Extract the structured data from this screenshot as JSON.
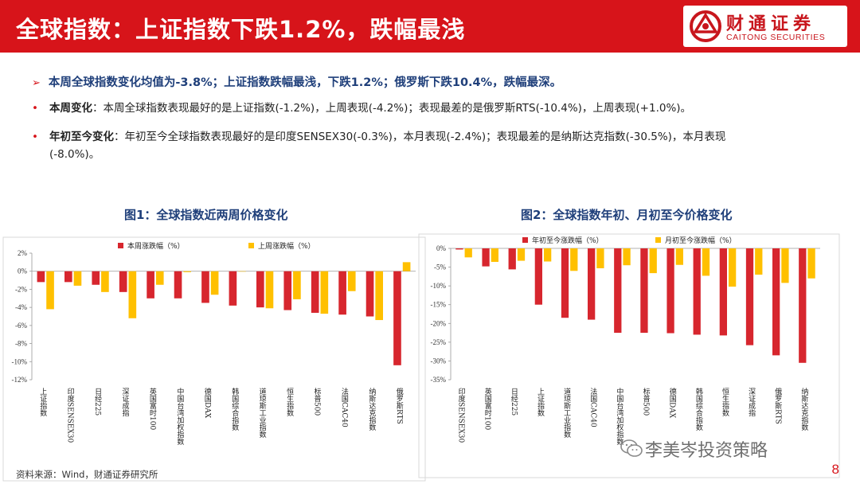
{
  "header": {
    "title": "全球指数：上证指数下跌1.2%，跌幅最浅",
    "logo_cn": "财通证券",
    "logo_en": "CAITONG SECURITIES"
  },
  "summary": "本周全球指数变化均值为-3.8%；上证指数跌幅最浅，下跌1.2%；俄罗斯下跌10.4%，跌幅最深。",
  "bullets": [
    {
      "label": "本周变化",
      "text": "：本周全球指数表现最好的是上证指数(-1.2%)，上周表现(-4.2%)；表现最差的是俄罗斯RTS(-10.4%)，上周表现(+1.0%)。"
    },
    {
      "label": "年初至今变化",
      "text": "：年初至今全球指数表现最好的是印度SENSEX30(-0.3%)，本月表现(-2.4%)；表现最差的是纳斯达克指数(-30.5%)，本月表现(-8.0%)。"
    }
  ],
  "colors": {
    "red": "#d7262e",
    "yellow": "#ffc000",
    "brand": "#d7141a",
    "navy": "#1f3f7a"
  },
  "chart_data": [
    {
      "type": "bar",
      "title": "图1：全球指数近两周价格变化",
      "categories": [
        "上证指数",
        "印度SENSEX30",
        "日经225",
        "深证成指",
        "英国富时100",
        "中国台湾加权指数",
        "德国DAX",
        "韩国综合指数",
        "道琼斯工业指数",
        "恒生指数",
        "标普500",
        "法国CAC40",
        "纳斯达克指数",
        "俄罗斯RTS"
      ],
      "series": [
        {
          "name": "本周涨跌幅（%）",
          "color": "#d7262e",
          "values": [
            -1.2,
            -1.2,
            -1.5,
            -2.3,
            -3.0,
            -3.0,
            -3.5,
            -3.8,
            -4.0,
            -4.3,
            -4.6,
            -4.8,
            -5.0,
            -10.4
          ]
        },
        {
          "name": "上周涨跌幅（%）",
          "color": "#ffc000",
          "values": [
            -4.2,
            -1.6,
            -2.3,
            -5.2,
            -1.5,
            -0.1,
            -2.6,
            0.0,
            -4.1,
            -3.1,
            -4.7,
            -2.2,
            -5.4,
            1.0
          ]
        }
      ],
      "ylim": [
        -12,
        2
      ],
      "yticks": [
        2,
        0,
        -2,
        -4,
        -6,
        -8,
        -10,
        -12
      ],
      "tick_suffix": "%"
    },
    {
      "type": "bar",
      "title": "图2：全球指数年初、月初至今价格变化",
      "categories": [
        "印度SENSEX30",
        "英国富时100",
        "日经225",
        "上证指数",
        "道琼斯工业指数",
        "法国CAC40",
        "中国台湾加权指数",
        "标普500",
        "德国DAX",
        "韩国综合指数",
        "恒生指数",
        "深证成指",
        "俄罗斯RTS",
        "纳斯达克指数"
      ],
      "series": [
        {
          "name": "年初至今涨跌幅（%）",
          "color": "#d7262e",
          "values": [
            -0.3,
            -4.8,
            -5.6,
            -15.0,
            -18.5,
            -19.0,
            -22.5,
            -22.5,
            -22.6,
            -23.0,
            -23.2,
            -25.8,
            -28.5,
            -30.5
          ]
        },
        {
          "name": "月初至今涨跌幅（%）",
          "color": "#ffc000",
          "values": [
            -2.4,
            -3.6,
            -3.3,
            -3.5,
            -6.0,
            -5.3,
            -4.5,
            -6.6,
            -4.4,
            -7.3,
            -10.2,
            -7.0,
            -9.2,
            -8.0
          ]
        }
      ],
      "ylim": [
        -35,
        0
      ],
      "yticks": [
        0,
        -5,
        -10,
        -15,
        -20,
        -25,
        -30,
        -35
      ],
      "tick_suffix": "%"
    }
  ],
  "source": "资料来源：Wind，财通证券研究所",
  "watermark": "李美岑投资策略",
  "page_number": "8"
}
